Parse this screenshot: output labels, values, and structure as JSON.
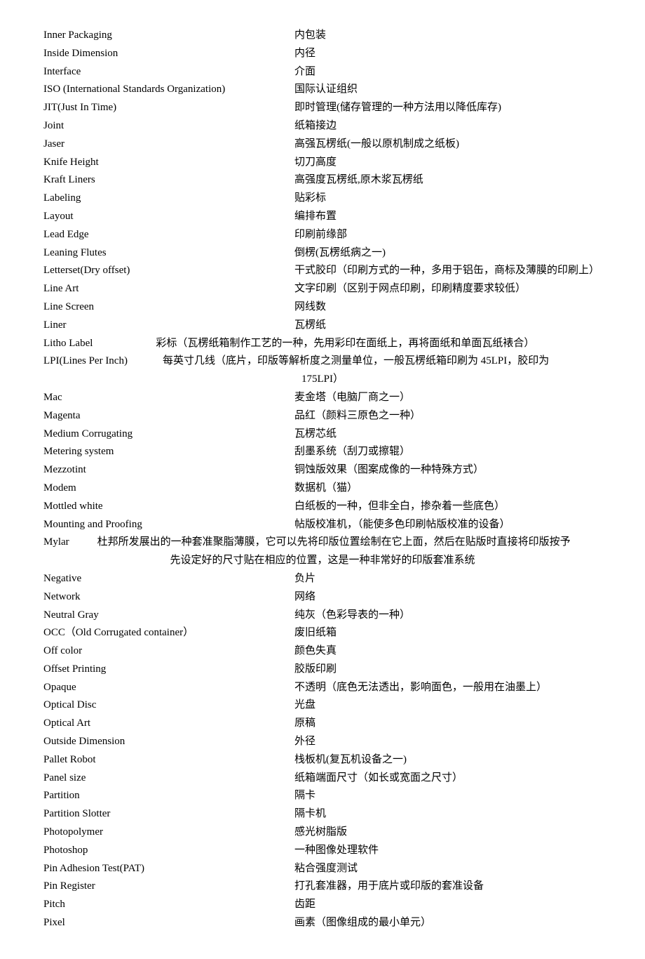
{
  "entries": [
    {
      "term": "Inner Packaging",
      "def": "内包装"
    },
    {
      "term": "Inside Dimension",
      "def": "内径"
    },
    {
      "term": "Interface",
      "def": "介面"
    },
    {
      "term": "ISO (International Standards Organization)",
      "def": "国际认证组织"
    },
    {
      "term": "JIT(Just In Time)",
      "def": "即时管理(储存管理的一种方法用以降低库存)"
    },
    {
      "term": "Joint",
      "def": "纸箱接边"
    },
    {
      "term": "Jaser",
      "def": "高强瓦楞纸(一般以原机制成之纸板)"
    },
    {
      "term": "Knife Height",
      "def": "切刀高度"
    },
    {
      "term": "Kraft Liners",
      "def": "高强度瓦楞纸,原木浆瓦楞纸"
    },
    {
      "term": "Labeling",
      "def": "贴彩标"
    },
    {
      "term": "Layout",
      "def": "编排布置"
    },
    {
      "term": "Lead Edge",
      "def": "印刷前缘部"
    },
    {
      "term": "Leaning Flutes",
      "def": "倒楞(瓦楞纸病之一)"
    },
    {
      "term": "Letterset(Dry offset)",
      "def": "干式胶印（印刷方式的一种，多用于铝缶，商标及薄膜的印刷上）"
    },
    {
      "term": "Line Art",
      "def": "文字印刷（区别于网点印刷，印刷精度要求较低）"
    },
    {
      "term": "Line Screen",
      "def": "网线数"
    },
    {
      "term": "Liner",
      "def": "瓦楞纸"
    },
    {
      "term": "Litho Label",
      "def": "彩标（瓦楞纸箱制作工艺的一种，先用彩印在面纸上，再将面纸和单面瓦纸裱合）",
      "tight": true
    },
    {
      "term": "LPI(Lines Per Inch)",
      "def": "每英寸几线（底片，印版等解析度之测量单位，一般瓦楞纸箱印刷为 45LPI，胶印为",
      "cont": "175LPI）",
      "wrap": true
    },
    {
      "term": "Mac",
      "def": "麦金塔（电脑厂商之一）"
    },
    {
      "term": "Magenta",
      "def": "品红（颜料三原色之一种）"
    },
    {
      "term": "Medium Corrugating",
      "def": "瓦楞芯纸"
    },
    {
      "term": "Metering system",
      "def": "刮墨系统（刮刀或擦辊）"
    },
    {
      "term": "Mezzotint",
      "def": "铜蚀版效果（图案成像的一种特殊方式）"
    },
    {
      "term": "Modem",
      "def": "数据机（猫）"
    },
    {
      "term": "Mottled white",
      "def": "白纸板的一种，但非全白，掺杂着一些底色）"
    },
    {
      "term": "Mounting and Proofing",
      "def": "帖版校准机，（能使多色印刷帖版校准的设备）"
    },
    {
      "term": "Mylar",
      "def": "杜邦所发展出的一种套准聚脂薄膜，它可以先将印版位置绘制在它上面，然后在贴版时直接将印版按予",
      "cont": "先设定好的尺寸贴在相应的位置，这是一种非常好的印版套准系统",
      "wrap": true,
      "tighter": true
    },
    {
      "term": "Negative",
      "def": "负片"
    },
    {
      "term": "Network",
      "def": "网络"
    },
    {
      "term": "Neutral Gray",
      "def": "纯灰（色彩导表的一种）"
    },
    {
      "term": "OCC（Old Corrugated container）",
      "def": "废旧纸箱"
    },
    {
      "term": "Off color",
      "def": "颜色失真"
    },
    {
      "term": "Offset Printing",
      "def": "胶版印刷"
    },
    {
      "term": "Opaque",
      "def": "不透明（底色无法透出，影响面色，一般用在油墨上）"
    },
    {
      "term": "Optical Disc",
      "def": "光盘"
    },
    {
      "term": "Optical Art",
      "def": "原稿"
    },
    {
      "term": "Outside Dimension",
      "def": "外径"
    },
    {
      "term": "Pallet Robot",
      "def": "栈板机(复瓦机设备之一)"
    },
    {
      "term": "Panel size",
      "def": "纸箱端面尺寸（如长或宽面之尺寸）"
    },
    {
      "term": "Partition",
      "def": "隔卡"
    },
    {
      "term": "Partition Slotter",
      "def": "隔卡机"
    },
    {
      "term": "Photopolymer",
      "def": "感光树脂版"
    },
    {
      "term": "Photoshop",
      "def": "一种图像处理软件"
    },
    {
      "term": "Pin Adhesion Test(PAT)",
      "def": "粘合强度测试"
    },
    {
      "term": "Pin Register",
      "def": "打孔套准器，用于底片或印版的套准设备"
    },
    {
      "term": "Pitch",
      "def": "齿距"
    },
    {
      "term": "Pixel",
      "def": "画素（图像组成的最小单元）"
    }
  ]
}
